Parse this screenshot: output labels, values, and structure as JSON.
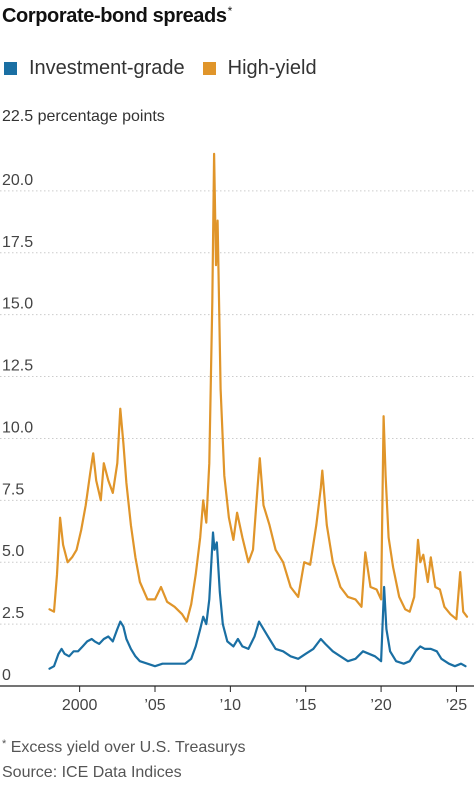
{
  "header": {
    "title": "Corporate-bond spreads",
    "title_marker": "*"
  },
  "footer": {
    "footnote_marker": "*",
    "footnote": "Excess yield over U.S. Treasurys",
    "source": "Source: ICE Data Indices"
  },
  "chart_data": {
    "type": "line",
    "title": "Corporate-bond spreads",
    "y_unit_label": "22.5 percentage points",
    "xlabel": "",
    "ylabel": "",
    "ylim": [
      0,
      22.5
    ],
    "xlim": [
      1997.9,
      2025.9
    ],
    "y_ticks": [
      0,
      2.5,
      5.0,
      7.5,
      10.0,
      12.5,
      15.0,
      17.5,
      20.0
    ],
    "y_tick_labels": [
      "0",
      "2.5",
      "5.0",
      "7.5",
      "10.0",
      "12.5",
      "15.0",
      "17.5",
      "20.0"
    ],
    "x_ticks": [
      2000,
      2005,
      2010,
      2015,
      2020,
      2025
    ],
    "x_tick_labels": [
      "2000",
      "’05",
      "’10",
      "’15",
      "’20",
      "’25"
    ],
    "grid": "horizontal",
    "legend_position": "top-left",
    "series": [
      {
        "name": "Investment-grade",
        "color": "#1a6fa3",
        "points": [
          [
            1998.0,
            0.7
          ],
          [
            1998.3,
            0.8
          ],
          [
            1998.6,
            1.3
          ],
          [
            1998.8,
            1.5
          ],
          [
            1999.0,
            1.3
          ],
          [
            1999.3,
            1.2
          ],
          [
            1999.6,
            1.4
          ],
          [
            1999.9,
            1.4
          ],
          [
            2000.2,
            1.6
          ],
          [
            2000.5,
            1.8
          ],
          [
            2000.8,
            1.9
          ],
          [
            2001.0,
            1.8
          ],
          [
            2001.3,
            1.7
          ],
          [
            2001.6,
            1.9
          ],
          [
            2001.9,
            2.0
          ],
          [
            2002.2,
            1.8
          ],
          [
            2002.5,
            2.3
          ],
          [
            2002.7,
            2.6
          ],
          [
            2002.9,
            2.4
          ],
          [
            2003.1,
            1.9
          ],
          [
            2003.4,
            1.5
          ],
          [
            2003.7,
            1.2
          ],
          [
            2004.0,
            1.0
          ],
          [
            2004.5,
            0.9
          ],
          [
            2005.0,
            0.8
          ],
          [
            2005.5,
            0.9
          ],
          [
            2006.0,
            0.9
          ],
          [
            2006.5,
            0.9
          ],
          [
            2007.0,
            0.9
          ],
          [
            2007.4,
            1.1
          ],
          [
            2007.7,
            1.6
          ],
          [
            2008.0,
            2.3
          ],
          [
            2008.2,
            2.8
          ],
          [
            2008.4,
            2.5
          ],
          [
            2008.6,
            3.5
          ],
          [
            2008.85,
            6.2
          ],
          [
            2008.95,
            5.5
          ],
          [
            2009.1,
            5.8
          ],
          [
            2009.3,
            3.8
          ],
          [
            2009.5,
            2.5
          ],
          [
            2009.8,
            1.8
          ],
          [
            2010.2,
            1.6
          ],
          [
            2010.5,
            1.9
          ],
          [
            2010.8,
            1.6
          ],
          [
            2011.2,
            1.5
          ],
          [
            2011.6,
            2.0
          ],
          [
            2011.9,
            2.6
          ],
          [
            2012.2,
            2.3
          ],
          [
            2012.6,
            1.9
          ],
          [
            2013.0,
            1.5
          ],
          [
            2013.5,
            1.4
          ],
          [
            2014.0,
            1.2
          ],
          [
            2014.5,
            1.1
          ],
          [
            2015.0,
            1.3
          ],
          [
            2015.5,
            1.5
          ],
          [
            2016.0,
            1.9
          ],
          [
            2016.3,
            1.7
          ],
          [
            2016.8,
            1.4
          ],
          [
            2017.3,
            1.2
          ],
          [
            2017.8,
            1.0
          ],
          [
            2018.3,
            1.1
          ],
          [
            2018.8,
            1.4
          ],
          [
            2019.2,
            1.3
          ],
          [
            2019.6,
            1.2
          ],
          [
            2020.0,
            1.0
          ],
          [
            2020.2,
            4.0
          ],
          [
            2020.35,
            2.3
          ],
          [
            2020.6,
            1.4
          ],
          [
            2021.0,
            1.0
          ],
          [
            2021.5,
            0.9
          ],
          [
            2021.9,
            1.0
          ],
          [
            2022.3,
            1.4
          ],
          [
            2022.6,
            1.6
          ],
          [
            2022.9,
            1.5
          ],
          [
            2023.3,
            1.5
          ],
          [
            2023.7,
            1.4
          ],
          [
            2024.0,
            1.1
          ],
          [
            2024.5,
            0.9
          ],
          [
            2024.9,
            0.8
          ],
          [
            2025.3,
            0.9
          ],
          [
            2025.6,
            0.8
          ]
        ]
      },
      {
        "name": "High-yield",
        "color": "#e0952a",
        "points": [
          [
            1998.0,
            3.1
          ],
          [
            1998.3,
            3.0
          ],
          [
            1998.5,
            4.5
          ],
          [
            1998.7,
            6.8
          ],
          [
            1998.9,
            5.7
          ],
          [
            1999.2,
            5.0
          ],
          [
            1999.5,
            5.2
          ],
          [
            1999.8,
            5.5
          ],
          [
            2000.1,
            6.3
          ],
          [
            2000.4,
            7.3
          ],
          [
            2000.7,
            8.6
          ],
          [
            2000.9,
            9.4
          ],
          [
            2001.1,
            8.3
          ],
          [
            2001.4,
            7.5
          ],
          [
            2001.6,
            9.0
          ],
          [
            2001.9,
            8.3
          ],
          [
            2002.2,
            7.8
          ],
          [
            2002.5,
            9.0
          ],
          [
            2002.7,
            11.2
          ],
          [
            2002.9,
            9.8
          ],
          [
            2003.1,
            8.2
          ],
          [
            2003.4,
            6.5
          ],
          [
            2003.7,
            5.2
          ],
          [
            2004.0,
            4.2
          ],
          [
            2004.5,
            3.5
          ],
          [
            2005.0,
            3.5
          ],
          [
            2005.4,
            4.0
          ],
          [
            2005.8,
            3.4
          ],
          [
            2006.3,
            3.2
          ],
          [
            2006.8,
            2.9
          ],
          [
            2007.1,
            2.6
          ],
          [
            2007.4,
            3.3
          ],
          [
            2007.7,
            4.5
          ],
          [
            2008.0,
            6.0
          ],
          [
            2008.2,
            7.5
          ],
          [
            2008.4,
            6.6
          ],
          [
            2008.6,
            9.0
          ],
          [
            2008.8,
            15.5
          ],
          [
            2008.92,
            21.5
          ],
          [
            2009.05,
            17.0
          ],
          [
            2009.15,
            18.8
          ],
          [
            2009.35,
            12.0
          ],
          [
            2009.6,
            8.5
          ],
          [
            2009.9,
            6.8
          ],
          [
            2010.2,
            5.9
          ],
          [
            2010.45,
            7.0
          ],
          [
            2010.8,
            6.0
          ],
          [
            2011.2,
            5.0
          ],
          [
            2011.5,
            5.5
          ],
          [
            2011.8,
            8.0
          ],
          [
            2011.95,
            9.2
          ],
          [
            2012.2,
            7.3
          ],
          [
            2012.6,
            6.5
          ],
          [
            2013.0,
            5.5
          ],
          [
            2013.5,
            5.0
          ],
          [
            2014.0,
            4.0
          ],
          [
            2014.5,
            3.6
          ],
          [
            2014.9,
            5.0
          ],
          [
            2015.3,
            4.9
          ],
          [
            2015.7,
            6.5
          ],
          [
            2016.0,
            8.0
          ],
          [
            2016.1,
            8.7
          ],
          [
            2016.4,
            6.5
          ],
          [
            2016.8,
            5.0
          ],
          [
            2017.3,
            4.0
          ],
          [
            2017.8,
            3.6
          ],
          [
            2018.3,
            3.5
          ],
          [
            2018.7,
            3.2
          ],
          [
            2018.95,
            5.4
          ],
          [
            2019.3,
            4.0
          ],
          [
            2019.7,
            3.9
          ],
          [
            2020.0,
            3.5
          ],
          [
            2020.17,
            10.9
          ],
          [
            2020.3,
            8.5
          ],
          [
            2020.5,
            6.0
          ],
          [
            2020.8,
            4.8
          ],
          [
            2021.2,
            3.6
          ],
          [
            2021.6,
            3.1
          ],
          [
            2021.9,
            3.0
          ],
          [
            2022.2,
            3.6
          ],
          [
            2022.45,
            5.9
          ],
          [
            2022.6,
            5.0
          ],
          [
            2022.8,
            5.3
          ],
          [
            2023.1,
            4.2
          ],
          [
            2023.3,
            5.2
          ],
          [
            2023.6,
            4.0
          ],
          [
            2023.9,
            3.9
          ],
          [
            2024.2,
            3.2
          ],
          [
            2024.6,
            2.9
          ],
          [
            2025.0,
            2.7
          ],
          [
            2025.25,
            4.6
          ],
          [
            2025.45,
            3.0
          ],
          [
            2025.7,
            2.8
          ]
        ]
      }
    ]
  }
}
